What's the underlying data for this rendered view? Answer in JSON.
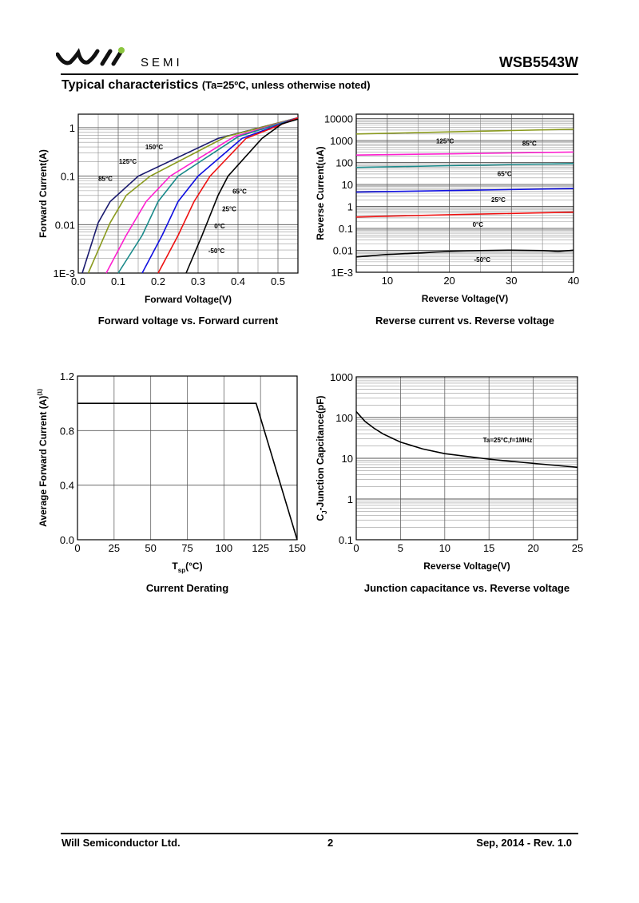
{
  "header": {
    "brand": "SEMI",
    "part_number": "WSB5543W",
    "logo_text": "Will"
  },
  "section": {
    "title": "Typical characteristics",
    "condition": "(Ta=25ºC, unless otherwise noted)"
  },
  "footer": {
    "company": "Will Semiconductor Ltd.",
    "page": "2",
    "date_rev": "Sep, 2014 - Rev. 1.0"
  },
  "colors": {
    "150": "#1a1a6e",
    "125": "#8a9a1e",
    "85": "#ff1fd0",
    "65": "#1a8a8a",
    "25": "#1010e0",
    "0": "#ee1111",
    "-50": "#000000"
  },
  "chart_data": [
    {
      "type": "line",
      "title": "Forward voltage vs. Forward current",
      "xlabel": "Forward Voltage(V)",
      "ylabel": "Forward Current(A)",
      "xscale": "linear",
      "yscale": "log",
      "xlim": [
        0,
        0.55
      ],
      "ylim": [
        0.001,
        1.9
      ],
      "xticks": [
        0,
        0.1,
        0.2,
        0.3,
        0.4,
        0.5
      ],
      "xtick_labels": [
        "0.0",
        "0.1",
        "0.2",
        "0.3",
        "0.4",
        "0.5"
      ],
      "yticks": [
        0.001,
        0.01,
        0.1,
        1
      ],
      "ytick_labels": [
        "1E-3",
        "0.01",
        "0.1",
        "1"
      ],
      "grid": true,
      "series": [
        {
          "name": "150°C",
          "color_key": "150",
          "x": [
            0.01,
            0.05,
            0.08,
            0.15,
            0.35,
            0.55
          ],
          "y": [
            0.001,
            0.011,
            0.03,
            0.1,
            0.6,
            1.6
          ],
          "label_at": [
            0.19,
            0.36
          ]
        },
        {
          "name": "125°C",
          "color_key": "125",
          "x": [
            0.025,
            0.08,
            0.12,
            0.18,
            0.37,
            0.55
          ],
          "y": [
            0.001,
            0.011,
            0.04,
            0.1,
            0.65,
            1.6
          ],
          "label_at": [
            0.124,
            0.18
          ]
        },
        {
          "name": "85°C",
          "color_key": "85",
          "x": [
            0.07,
            0.12,
            0.17,
            0.23,
            0.39,
            0.55
          ],
          "y": [
            0.001,
            0.006,
            0.03,
            0.1,
            0.65,
            1.6
          ],
          "label_at": [
            0.068,
            0.08
          ]
        },
        {
          "name": "65°C",
          "color_key": "65",
          "x": [
            0.1,
            0.16,
            0.2,
            0.25,
            0.4,
            0.55
          ],
          "y": [
            0.001,
            0.006,
            0.03,
            0.1,
            0.65,
            1.6
          ],
          "label_at": [
            0.404,
            0.044
          ]
        },
        {
          "name": "25°C",
          "color_key": "25",
          "x": [
            0.16,
            0.21,
            0.25,
            0.3,
            0.41,
            0.55
          ],
          "y": [
            0.001,
            0.006,
            0.03,
            0.1,
            0.6,
            1.6
          ],
          "label_at": [
            0.378,
            0.019
          ]
        },
        {
          "name": "0°C",
          "color_key": "0",
          "x": [
            0.2,
            0.25,
            0.29,
            0.33,
            0.42,
            0.55
          ],
          "y": [
            0.001,
            0.006,
            0.03,
            0.1,
            0.6,
            1.6
          ],
          "label_at": [
            0.354,
            0.0083
          ]
        },
        {
          "name": "-50°C",
          "color_key": "-50",
          "x": [
            0.27,
            0.31,
            0.35,
            0.375,
            0.46,
            0.51,
            0.55
          ],
          "y": [
            0.001,
            0.006,
            0.04,
            0.1,
            0.6,
            1.2,
            1.5
          ],
          "label_at": [
            0.346,
            0.0026
          ]
        }
      ]
    },
    {
      "type": "line",
      "title": "Reverse current vs. Reverse voltage",
      "xlabel": "Reverse Voltage(V)",
      "ylabel": "Reverse Current(uA)",
      "xscale": "linear",
      "yscale": "log",
      "xlim": [
        5,
        40
      ],
      "ylim": [
        0.001,
        16000
      ],
      "xticks": [
        10,
        20,
        30,
        40
      ],
      "xtick_labels": [
        "10",
        "20",
        "30",
        "40"
      ],
      "yticks": [
        0.001,
        0.01,
        0.1,
        1,
        10,
        100,
        1000,
        10000
      ],
      "ytick_labels": [
        "1E-3",
        "0.01",
        "0.1",
        "1",
        "10",
        "100",
        "1000",
        "10000"
      ],
      "grid": true,
      "series": [
        {
          "name": "125°C",
          "color_key": "125",
          "x": [
            5,
            20,
            40
          ],
          "y": [
            2000,
            2500,
            3300
          ],
          "label_at": [
            19.3,
            760
          ]
        },
        {
          "name": "85°C",
          "color_key": "85",
          "x": [
            5,
            20,
            40
          ],
          "y": [
            220,
            250,
            300
          ],
          "label_at": [
            32.9,
            585
          ]
        },
        {
          "name": "65°C",
          "color_key": "65",
          "x": [
            5,
            20,
            40
          ],
          "y": [
            60,
            72,
            90
          ],
          "label_at": [
            28.9,
            24
          ]
        },
        {
          "name": "25°C",
          "color_key": "25",
          "x": [
            5,
            20,
            40
          ],
          "y": [
            4.5,
            5.3,
            6.5
          ],
          "label_at": [
            27.9,
            1.6
          ]
        },
        {
          "name": "0°C",
          "color_key": "0",
          "x": [
            5,
            20,
            40
          ],
          "y": [
            0.33,
            0.42,
            0.55
          ],
          "label_at": [
            24.6,
            0.12
          ]
        },
        {
          "name": "-50°C",
          "color_key": "-50",
          "x": [
            5,
            10,
            15,
            20,
            25,
            30,
            35,
            37.5,
            40
          ],
          "y": [
            0.005,
            0.0065,
            0.0075,
            0.009,
            0.0098,
            0.0102,
            0.0098,
            0.0088,
            0.0102
          ],
          "label_at": [
            25.3,
            0.003
          ]
        }
      ]
    },
    {
      "type": "line",
      "title": "Current Derating",
      "xlabel": "T",
      "xlabel_sub": "sp",
      "xlabel_tail": "(°C)",
      "ylabel": "Average Forward Current (A)",
      "ylabel_note": "(1)",
      "xscale": "linear",
      "yscale": "linear",
      "xlim": [
        0,
        150
      ],
      "ylim": [
        0,
        1.2
      ],
      "xticks": [
        0,
        25,
        50,
        75,
        100,
        125,
        150
      ],
      "xtick_labels": [
        "0",
        "25",
        "50",
        "75",
        "100",
        "125",
        "150"
      ],
      "yticks": [
        0,
        0.4,
        0.8,
        1.2
      ],
      "ytick_labels": [
        "0.0",
        "0.4",
        "0.8",
        "1.2"
      ],
      "grid": true,
      "series": [
        {
          "name": "Derating",
          "color_key": "-50",
          "x": [
            0,
            122,
            150
          ],
          "y": [
            1.0,
            1.0,
            0
          ]
        }
      ]
    },
    {
      "type": "line",
      "title": "Junction capacitance vs. Reverse voltage",
      "xlabel": "Reverse Voltage(V)",
      "ylabel": "C",
      "ylabel_sub": "J",
      "ylabel_tail": "-Junction Capcitance(pF)",
      "xscale": "linear",
      "yscale": "log",
      "xlim": [
        0,
        25
      ],
      "ylim": [
        0.1,
        1000
      ],
      "xticks": [
        0,
        5,
        10,
        15,
        20,
        25
      ],
      "xtick_labels": [
        "0",
        "5",
        "10",
        "15",
        "20",
        "25"
      ],
      "yticks": [
        0.1,
        1,
        10,
        100,
        1000
      ],
      "ytick_labels": [
        "0.1",
        "1",
        "10",
        "100",
        "1000"
      ],
      "grid": true,
      "annotation": {
        "text": "Ta=25°C,f=1MHz",
        "at": [
          17.1,
          24.5
        ]
      },
      "series": [
        {
          "name": "Cj",
          "color_key": "-50",
          "x": [
            0,
            1,
            2,
            3,
            5,
            7.5,
            10,
            15,
            20,
            25
          ],
          "y": [
            140,
            80,
            55,
            40,
            25,
            17,
            13,
            9.5,
            7.5,
            6
          ]
        }
      ]
    }
  ]
}
